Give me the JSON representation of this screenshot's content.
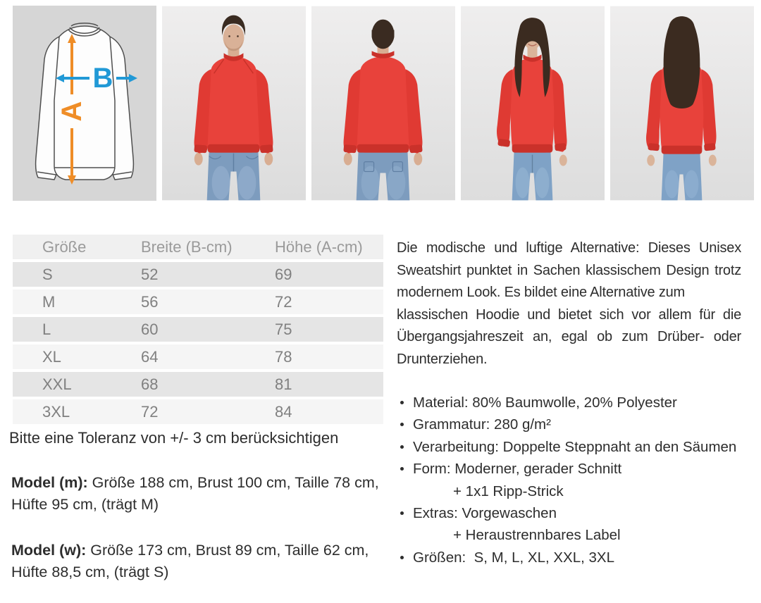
{
  "diagram": {
    "label_a": "A",
    "label_b": "B"
  },
  "photo_ids": [
    "man-front",
    "man-back",
    "woman-front",
    "woman-back"
  ],
  "size_table": {
    "headers": [
      "Größe",
      "Breite (B-cm)",
      "Höhe (A-cm)"
    ],
    "rows": [
      [
        "S",
        "52",
        "69"
      ],
      [
        "M",
        "56",
        "72"
      ],
      [
        "L",
        "60",
        "75"
      ],
      [
        "XL",
        "64",
        "78"
      ],
      [
        "XXL",
        "68",
        "81"
      ],
      [
        "3XL",
        "72",
        "84"
      ]
    ]
  },
  "tolerance_note": "Bitte eine Toleranz von +/- 3 cm berücksichtigen",
  "model_m": {
    "label": "Model (m):",
    "text": "Größe 188 cm, Brust 100 cm, Taille 78 cm, Hüfte 95 cm, (trägt M)"
  },
  "model_w": {
    "label": "Model (w):",
    "text": "Größe 173 cm, Brust 89 cm, Taille 62 cm, Hüfte 88,5 cm, (trägt S)"
  },
  "description": {
    "p1": "Die modische und luftige Alternative: Dieses Unisex Sweatshirt punktet in Sachen klassischem Design trotz modernem Look. Es bildet eine Alternative zum",
    "p2": "klassischen Hoodie und bietet sich vor allem für die Übergangsjahreszeit an, egal ob zum Drüber- oder Drunterziehen."
  },
  "details": {
    "items": [
      {
        "text": "Material: 80% Baumwolle, 20% Polyester"
      },
      {
        "text": "Grammatur: 280 g/m²"
      },
      {
        "text": "Verarbeitung: Doppelte Steppnaht an den Säumen"
      },
      {
        "text": "Form: Moderner, gerader Schnitt",
        "sub": "+ 1x1 Ripp-Strick"
      },
      {
        "text": "Extras: Vorgewaschen",
        "sub": "+ Heraustrennbares Label"
      },
      {
        "text": "Größen:  S, M, L, XL, XXL, 3XL"
      }
    ]
  },
  "colors": {
    "sweatshirt_red": "#e8423b",
    "sweatshirt_red_dark": "#ca312a",
    "arrow_orange": "#ef8d27",
    "arrow_blue": "#2199d6",
    "jeans_blue": "#7d9cbe",
    "diagram_bg": "#d6d6d6",
    "photo_bg": "#ececec",
    "table_head_bg": "#f0f0f0",
    "table_row_dark": "#e5e5e5",
    "table_row_light": "#f5f5f5",
    "table_text": "#808080",
    "text_dark": "#2d2d2d"
  }
}
